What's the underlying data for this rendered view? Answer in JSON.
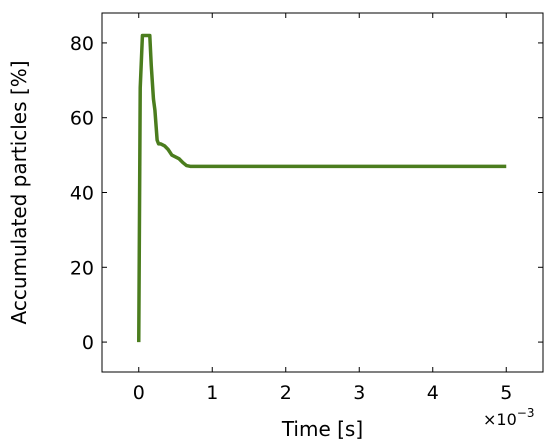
{
  "chart_data": {
    "type": "line",
    "xlabel": "Time [s]",
    "ylabel": "Accumulated particles [%]",
    "x_multiplier_label": "×10",
    "x_multiplier_exp": "−3",
    "xlim": [
      -0.5,
      5.5
    ],
    "ylim": [
      -8,
      88
    ],
    "x_ticks": [
      0,
      1,
      2,
      3,
      4,
      5
    ],
    "y_ticks": [
      0,
      20,
      40,
      60,
      80
    ],
    "x_tick_labels": [
      "0",
      "1",
      "2",
      "3",
      "4",
      "5"
    ],
    "y_tick_labels": [
      "0",
      "20",
      "40",
      "60",
      "80"
    ],
    "grid": false,
    "line_color": "#4b7d1e",
    "series": [
      {
        "x": [
          0,
          0.02,
          0.05,
          0.1,
          0.15,
          0.17,
          0.2,
          0.22,
          0.25,
          0.27,
          0.3,
          0.35,
          0.4,
          0.45,
          0.5,
          0.55,
          0.6,
          0.65,
          0.7,
          1,
          2,
          3,
          4,
          5
        ],
        "y": [
          0,
          68,
          82,
          82,
          82,
          74,
          65,
          62,
          54,
          53,
          53,
          52.5,
          51.5,
          50,
          49.5,
          49,
          48,
          47.2,
          47,
          47,
          47,
          47,
          47,
          47
        ]
      }
    ]
  }
}
